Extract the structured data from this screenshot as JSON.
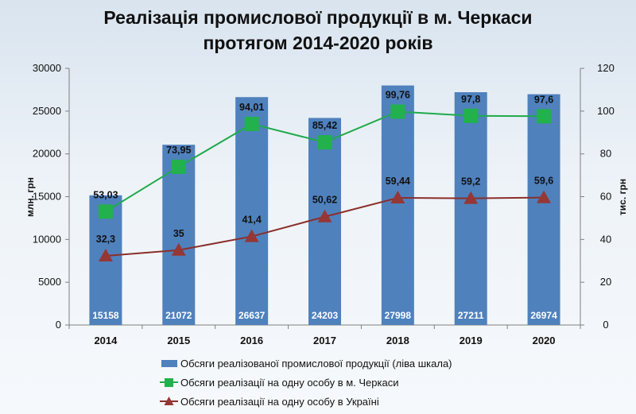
{
  "chart_data": {
    "type": "bar",
    "title_line1": "Реалізація промислової продукції в м. Черкаси",
    "title_line2": "протягом 2014-2020 років",
    "ylabel_left": "млн. грн",
    "ylabel_right": "тис. грн",
    "categories": [
      "2014",
      "2015",
      "2016",
      "2017",
      "2018",
      "2019",
      "2020"
    ],
    "ylim_left": [
      0,
      30000
    ],
    "yticks_left": [
      "0",
      "5000",
      "10000",
      "15000",
      "20000",
      "25000",
      "30000"
    ],
    "ylim_right": [
      0,
      120
    ],
    "yticks_right": [
      "0",
      "20",
      "40",
      "60",
      "80",
      "100",
      "120"
    ],
    "grid": false,
    "legend_position": "bottom",
    "series": [
      {
        "name": "Обсяги реалізованої промислової продукції (ліва шкала)",
        "type": "bar",
        "axis": "left",
        "color": "#4f81bd",
        "values": [
          15158,
          21072,
          26637,
          24203,
          27998,
          27211,
          26974
        ],
        "labels": [
          "15158",
          "21072",
          "26637",
          "24203",
          "27998",
          "27211",
          "26974"
        ]
      },
      {
        "name": "Обсяги реалізації на одну особу в м. Черкаси",
        "type": "line",
        "axis": "right",
        "color": "#1faa4b",
        "marker": "square",
        "marker_color": "#22b14c",
        "values": [
          53.03,
          73.95,
          94.01,
          85.42,
          99.76,
          97.8,
          97.6
        ],
        "labels": [
          "53,03",
          "73,95",
          "94,01",
          "85,42",
          "99,76",
          "97,8",
          "97,6"
        ]
      },
      {
        "name": "Обсяги реалізації на одну особу в Україні",
        "type": "line",
        "axis": "right",
        "color": "#8b2f2a",
        "marker": "triangle",
        "marker_color": "#953735",
        "values": [
          32.3,
          35,
          41.4,
          50.62,
          59.44,
          59.2,
          59.6
        ],
        "labels": [
          "32,3",
          "35",
          "41,4",
          "50,62",
          "59,44",
          "59,2",
          "59,6"
        ]
      }
    ]
  }
}
